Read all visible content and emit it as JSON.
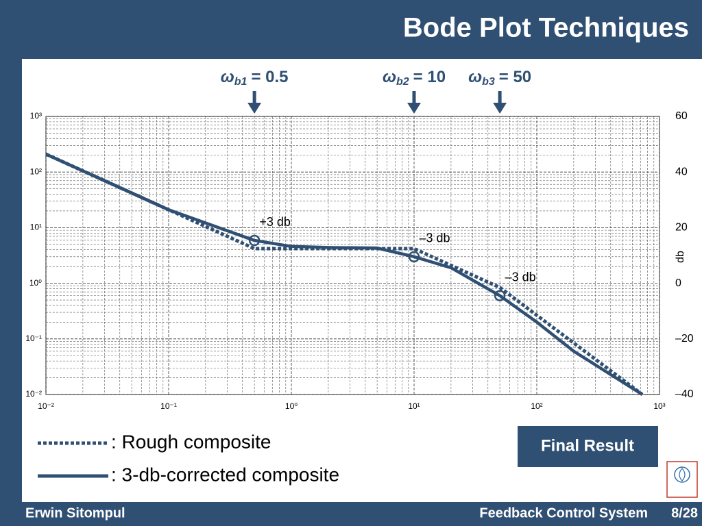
{
  "header": {
    "title": "Bode Plot Techniques"
  },
  "chart_data": {
    "type": "line",
    "xscale": "log",
    "yscale": "log",
    "grid": true,
    "xlim": [
      0.01,
      1000
    ],
    "xticks": [
      {
        "value": 0.01,
        "label": "10⁻²"
      },
      {
        "value": 0.1,
        "label": "10⁻¹"
      },
      {
        "value": 1,
        "label": "10⁰"
      },
      {
        "value": 10,
        "label": "10¹"
      },
      {
        "value": 100,
        "label": "10²"
      },
      {
        "value": 1000,
        "label": "10³"
      }
    ],
    "ylim": [
      0.01,
      1000
    ],
    "yticks": [
      {
        "value": 0.01,
        "label": "10⁻²"
      },
      {
        "value": 0.1,
        "label": "10⁻¹"
      },
      {
        "value": 1,
        "label": "10⁰"
      },
      {
        "value": 10,
        "label": "10¹"
      },
      {
        "value": 100,
        "label": "10²"
      },
      {
        "value": 1000,
        "label": "10³"
      }
    ],
    "y2label": "db",
    "y2lim": [
      -40,
      60
    ],
    "y2ticks": [
      {
        "value": 60,
        "label": "60"
      },
      {
        "value": 40,
        "label": "40"
      },
      {
        "value": 20,
        "label": "20"
      },
      {
        "value": 0,
        "label": "0"
      },
      {
        "value": -20,
        "label": "–20"
      },
      {
        "value": -40,
        "label": "–40"
      }
    ],
    "series": [
      {
        "name": ": Rough composite",
        "color": "#2f4f73",
        "style": "dotted",
        "x": [
          0.01,
          0.5,
          10,
          50,
          724
        ],
        "values": [
          210,
          4.2,
          4.2,
          0.84,
          0.01
        ]
      },
      {
        "name": ": 3-db-corrected composite",
        "color": "#2f4f73",
        "style": "solid",
        "x": [
          0.01,
          0.1,
          0.5,
          1,
          2,
          5,
          10,
          20,
          50,
          100,
          200,
          724
        ],
        "values": [
          210,
          21,
          5.9,
          4.6,
          4.4,
          4.3,
          3.0,
          1.9,
          0.6,
          0.2,
          0.06,
          0.01
        ]
      }
    ],
    "breakpoints": [
      {
        "symbol": "ω",
        "sub": "b1",
        "label": "= 0.5",
        "value": 0.5
      },
      {
        "symbol": "ω",
        "sub": "b2",
        "label": "= 10",
        "value": 10
      },
      {
        "symbol": "ω",
        "sub": "b3",
        "label": "= 50",
        "value": 50
      }
    ],
    "corrections": [
      {
        "x": 0.5,
        "y": 5.9,
        "label": "+3 db"
      },
      {
        "x": 10,
        "y": 3.0,
        "label": "–3 db"
      },
      {
        "x": 50,
        "y": 0.6,
        "label": "–3 db"
      }
    ]
  },
  "button": {
    "label": "Final Result"
  },
  "footer": {
    "author": "Erwin Sitompul",
    "course": "Feedback Control System",
    "page": "8/28"
  }
}
